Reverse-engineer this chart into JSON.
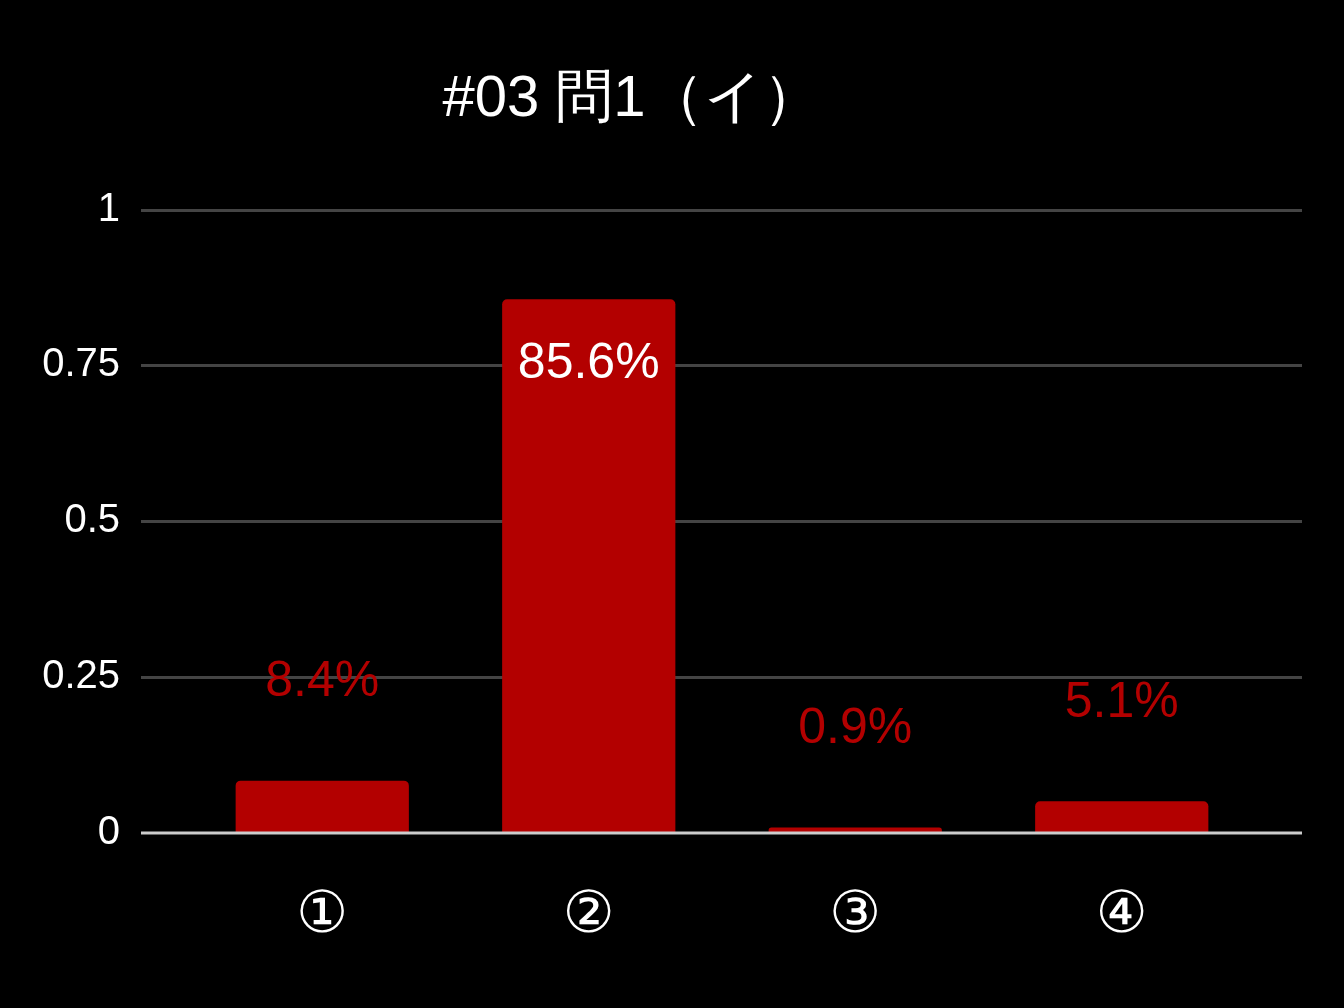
{
  "chart_data": {
    "type": "bar",
    "title": "#03 問1（イ）",
    "categories": [
      "①",
      "②",
      "③",
      "④"
    ],
    "values": [
      0.084,
      0.856,
      0.009,
      0.051
    ],
    "value_labels": [
      "8.4%",
      "85.6%",
      "0.9%",
      "5.1%"
    ],
    "color": "#b30000",
    "ylim": [
      0,
      1
    ],
    "yticks": [
      0,
      0.25,
      0.5,
      0.75,
      1
    ],
    "grid": "y"
  }
}
